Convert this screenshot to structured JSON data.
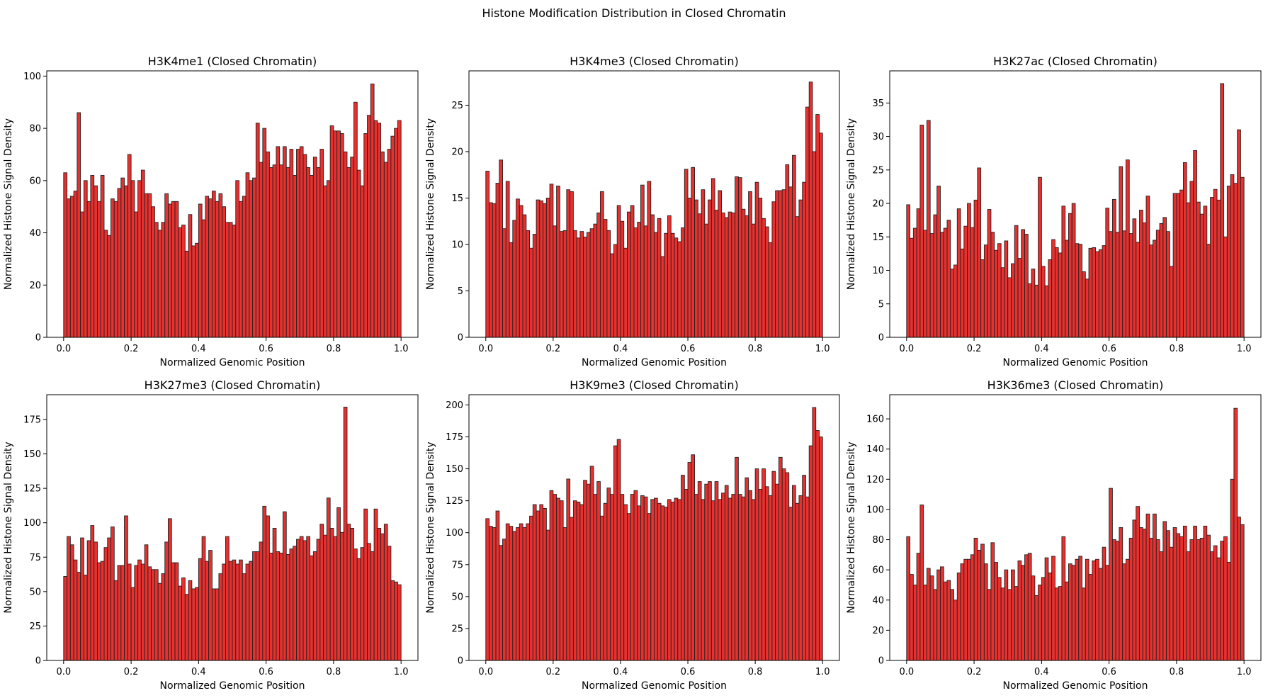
{
  "figure": {
    "suptitle": "Histone Modification Distribution in Closed Chromatin"
  },
  "colors": {
    "bar_fill": "#e8302e",
    "bar_edge": "#222222",
    "background": "#ffffff"
  },
  "chart_data": [
    {
      "type": "bar",
      "title": "H3K4me1 (Closed Chromatin)",
      "xlabel": "Normalized Genomic Position",
      "ylabel": "Normalized Histone Signal Density",
      "xlim": [
        -0.05,
        1.05
      ],
      "ylim": [
        0,
        102
      ],
      "xticks": [
        0.0,
        0.2,
        0.4,
        0.6,
        0.8,
        1.0
      ],
      "xtick_labels": [
        "0.0",
        "0.2",
        "0.4",
        "0.6",
        "0.8",
        "1.0"
      ],
      "yticks": [
        0,
        20,
        40,
        60,
        80,
        100
      ],
      "ytick_labels": [
        "0",
        "20",
        "40",
        "60",
        "80",
        "100"
      ],
      "grid": false,
      "bins": 100,
      "values": [
        63,
        53,
        54,
        56,
        86,
        48,
        60,
        52,
        62,
        58,
        52,
        62,
        41,
        39,
        53,
        52,
        57,
        61,
        58,
        70,
        60,
        48,
        60,
        64,
        55,
        55,
        50,
        44,
        41,
        44,
        55,
        51,
        52,
        52,
        42,
        43,
        33,
        47,
        35,
        36,
        51,
        45,
        54,
        53,
        56,
        52,
        55,
        50,
        44,
        44,
        43,
        60,
        52,
        54,
        63,
        60,
        61,
        82,
        67,
        80,
        71,
        65,
        66,
        73,
        66,
        73,
        65,
        72,
        62,
        72,
        73,
        70,
        65,
        62,
        69,
        65,
        72,
        58,
        60,
        81,
        79,
        79,
        78,
        71,
        65,
        69,
        90,
        64,
        58,
        78,
        85,
        97,
        83,
        82,
        71,
        67,
        72,
        77,
        80,
        83
      ]
    },
    {
      "type": "bar",
      "title": "H3K4me3 (Closed Chromatin)",
      "xlabel": "Normalized Genomic Position",
      "ylabel": "Normalized Histone Signal Density",
      "xlim": [
        -0.05,
        1.05
      ],
      "ylim": [
        0,
        28.7
      ],
      "xticks": [
        0.0,
        0.2,
        0.4,
        0.6,
        0.8,
        1.0
      ],
      "xtick_labels": [
        "0.0",
        "0.2",
        "0.4",
        "0.6",
        "0.8",
        "1.0"
      ],
      "yticks": [
        0,
        5,
        10,
        15,
        20,
        25
      ],
      "ytick_labels": [
        "0",
        "5",
        "10",
        "15",
        "20",
        "25"
      ],
      "grid": false,
      "bins": 100,
      "values": [
        17.9,
        14.5,
        14.4,
        16.6,
        19.1,
        11.7,
        16.8,
        10.2,
        12.6,
        14.9,
        14.2,
        13.2,
        11.5,
        9.6,
        11.1,
        14.8,
        14.7,
        14.4,
        15.0,
        16.5,
        12.0,
        16.3,
        11.4,
        11.5,
        15.9,
        15.7,
        11.5,
        10.7,
        11.4,
        10.8,
        11.3,
        11.7,
        12.2,
        13.4,
        15.7,
        12.7,
        11.5,
        9.0,
        10.0,
        14.2,
        12.5,
        9.6,
        13.5,
        14.2,
        11.8,
        12.4,
        16.4,
        12.0,
        16.8,
        13.2,
        11.3,
        12.8,
        8.7,
        11.2,
        13.1,
        11.2,
        10.7,
        10.3,
        11.8,
        18.1,
        15.0,
        18.3,
        14.8,
        13.3,
        15.9,
        12.2,
        14.8,
        17.1,
        13.7,
        15.8,
        13.4,
        12.9,
        13.5,
        13.4,
        17.3,
        17.2,
        13.8,
        13.1,
        15.7,
        12.2,
        16.7,
        15.0,
        12.8,
        11.9,
        10.2,
        14.6,
        15.8,
        15.8,
        15.9,
        18.6,
        16.2,
        19.6,
        13.0,
        14.8,
        16.7,
        24.8,
        27.5,
        20.0,
        24.0,
        22.0
      ]
    },
    {
      "type": "bar",
      "title": "H3K27ac (Closed Chromatin)",
      "xlabel": "Normalized Genomic Position",
      "ylabel": "Normalized Histone Signal Density",
      "xlim": [
        -0.05,
        1.05
      ],
      "ylim": [
        0,
        39.8
      ],
      "xticks": [
        0.0,
        0.2,
        0.4,
        0.6,
        0.8,
        1.0
      ],
      "xtick_labels": [
        "0.0",
        "0.2",
        "0.4",
        "0.6",
        "0.8",
        "1.0"
      ],
      "yticks": [
        0,
        5,
        10,
        15,
        20,
        25,
        30,
        35
      ],
      "ytick_labels": [
        "0",
        "5",
        "10",
        "15",
        "20",
        "25",
        "30",
        "35"
      ],
      "grid": false,
      "bins": 100,
      "values": [
        19.8,
        14.8,
        16.3,
        19.2,
        31.7,
        16.0,
        32.4,
        15.5,
        18.3,
        22.6,
        15.7,
        16.3,
        17.5,
        10.2,
        10.8,
        19.2,
        13.2,
        16.6,
        20.0,
        16.4,
        20.5,
        25.3,
        11.6,
        13.8,
        19.1,
        15.7,
        13.0,
        14.0,
        10.4,
        14.4,
        8.9,
        11.0,
        16.7,
        11.8,
        16.1,
        15.4,
        8.0,
        10.2,
        7.8,
        23.9,
        10.6,
        7.7,
        11.6,
        14.6,
        13.4,
        12.6,
        19.6,
        14.5,
        18.5,
        20.0,
        14.0,
        13.9,
        9.8,
        8.7,
        13.3,
        13.4,
        12.8,
        13.1,
        13.7,
        19.3,
        15.8,
        20.6,
        15.7,
        25.5,
        15.9,
        26.5,
        15.5,
        17.7,
        14.2,
        19.0,
        17.1,
        21.1,
        13.8,
        14.5,
        16.0,
        17.0,
        17.9,
        15.8,
        10.6,
        21.5,
        21.5,
        22.0,
        26.1,
        20.1,
        23.3,
        27.9,
        20.2,
        18.4,
        19.6,
        13.9,
        20.9,
        22.1,
        20.5,
        37.9,
        15.0,
        22.6,
        24.3,
        23.0,
        31.0,
        23.9
      ]
    },
    {
      "type": "bar",
      "title": "H3K27me3 (Closed Chromatin)",
      "xlabel": "Normalized Genomic Position",
      "ylabel": "Normalized Histone Signal Density",
      "xlim": [
        -0.05,
        1.05
      ],
      "ylim": [
        0,
        193
      ],
      "xticks": [
        0.0,
        0.2,
        0.4,
        0.6,
        0.8,
        1.0
      ],
      "xtick_labels": [
        "0.0",
        "0.2",
        "0.4",
        "0.6",
        "0.8",
        "1.0"
      ],
      "yticks": [
        0,
        25,
        50,
        75,
        100,
        125,
        150,
        175
      ],
      "ytick_labels": [
        "0",
        "25",
        "50",
        "75",
        "100",
        "125",
        "150",
        "175"
      ],
      "grid": false,
      "bins": 100,
      "values": [
        61,
        90,
        84,
        73,
        64,
        89,
        62,
        87,
        98,
        86,
        71,
        72,
        82,
        89,
        97,
        58,
        69,
        69,
        105,
        70,
        53,
        69,
        73,
        70,
        84,
        68,
        66,
        66,
        56,
        63,
        86,
        103,
        71,
        71,
        54,
        60,
        48,
        58,
        52,
        53,
        74,
        90,
        72,
        80,
        52,
        52,
        63,
        70,
        90,
        72,
        73,
        70,
        73,
        63,
        70,
        72,
        79,
        79,
        86,
        112,
        105,
        78,
        96,
        79,
        78,
        108,
        77,
        81,
        83,
        88,
        90,
        87,
        90,
        76,
        79,
        88,
        99,
        91,
        118,
        96,
        90,
        111,
        93,
        184,
        99,
        96,
        81,
        74,
        82,
        110,
        85,
        79,
        110,
        96,
        92,
        99,
        83,
        58,
        57,
        55
      ]
    },
    {
      "type": "bar",
      "title": "H3K9me3 (Closed Chromatin)",
      "xlabel": "Normalized Genomic Position",
      "ylabel": "Normalized Histone Signal Density",
      "xlim": [
        -0.05,
        1.05
      ],
      "ylim": [
        0,
        208
      ],
      "xticks": [
        0.0,
        0.2,
        0.4,
        0.6,
        0.8,
        1.0
      ],
      "xtick_labels": [
        "0.0",
        "0.2",
        "0.4",
        "0.6",
        "0.8",
        "1.0"
      ],
      "yticks": [
        0,
        25,
        50,
        75,
        100,
        125,
        150,
        175,
        200
      ],
      "ytick_labels": [
        "0",
        "25",
        "50",
        "75",
        "100",
        "125",
        "150",
        "175",
        "200"
      ],
      "grid": false,
      "bins": 100,
      "values": [
        111,
        105,
        104,
        117,
        90,
        95,
        107,
        105,
        101,
        104,
        107,
        104,
        107,
        113,
        122,
        117,
        122,
        119,
        102,
        133,
        130,
        127,
        125,
        104,
        142,
        112,
        125,
        124,
        122,
        141,
        138,
        152,
        130,
        140,
        113,
        123,
        135,
        130,
        168,
        173,
        130,
        122,
        115,
        130,
        133,
        121,
        129,
        128,
        115,
        126,
        127,
        123,
        121,
        120,
        126,
        124,
        127,
        126,
        145,
        134,
        155,
        161,
        130,
        140,
        126,
        138,
        140,
        125,
        140,
        126,
        131,
        137,
        127,
        130,
        159,
        130,
        128,
        143,
        133,
        126,
        150,
        134,
        150,
        136,
        129,
        148,
        138,
        159,
        150,
        147,
        120,
        137,
        123,
        129,
        145,
        128,
        168,
        198,
        180,
        175
      ]
    },
    {
      "type": "bar",
      "title": "H3K36me3 (Closed Chromatin)",
      "xlabel": "Normalized Genomic Position",
      "ylabel": "Normalized Histone Signal Density",
      "xlim": [
        -0.05,
        1.05
      ],
      "ylim": [
        0,
        176
      ],
      "xticks": [
        0.0,
        0.2,
        0.4,
        0.6,
        0.8,
        1.0
      ],
      "xtick_labels": [
        "0.0",
        "0.2",
        "0.4",
        "0.6",
        "0.8",
        "1.0"
      ],
      "yticks": [
        0,
        20,
        40,
        60,
        80,
        100,
        120,
        140,
        160
      ],
      "ytick_labels": [
        "0",
        "20",
        "40",
        "60",
        "80",
        "100",
        "120",
        "140",
        "160"
      ],
      "grid": false,
      "bins": 100,
      "values": [
        82,
        57,
        50,
        71,
        103,
        50,
        61,
        56,
        47,
        60,
        62,
        52,
        53,
        47,
        40,
        58,
        64,
        67,
        67,
        70,
        81,
        73,
        77,
        64,
        47,
        78,
        65,
        55,
        48,
        60,
        47,
        60,
        49,
        66,
        63,
        70,
        71,
        56,
        43,
        50,
        55,
        68,
        58,
        69,
        48,
        49,
        82,
        52,
        64,
        63,
        67,
        69,
        48,
        67,
        57,
        66,
        67,
        61,
        75,
        63,
        114,
        80,
        79,
        88,
        64,
        67,
        81,
        93,
        102,
        88,
        87,
        97,
        81,
        97,
        80,
        72,
        92,
        86,
        75,
        88,
        84,
        82,
        89,
        72,
        80,
        89,
        80,
        81,
        89,
        83,
        72,
        76,
        68,
        79,
        82,
        65,
        120,
        167,
        95,
        90
      ]
    }
  ]
}
